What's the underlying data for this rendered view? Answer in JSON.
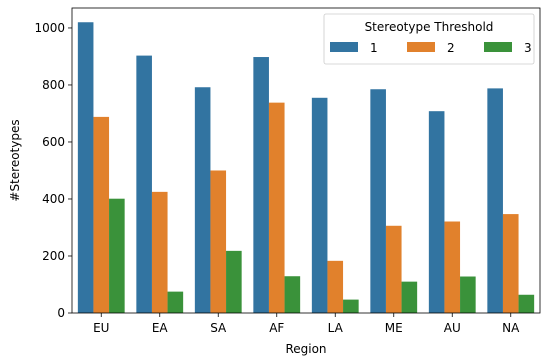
{
  "chart_data": {
    "type": "bar",
    "xlabel": "Region",
    "ylabel": "#Stereotypes",
    "categories": [
      "EU",
      "EA",
      "SA",
      "AF",
      "LA",
      "ME",
      "AU",
      "NA"
    ],
    "ylim": [
      0,
      1070
    ],
    "yticks": [
      0,
      200,
      400,
      600,
      800,
      1000
    ],
    "legend": {
      "title": "Stereotype Threshold",
      "placement": "top-right"
    },
    "grid": false,
    "series": [
      {
        "name": "1",
        "color": "#3274a1",
        "values": [
          1020,
          903,
          792,
          898,
          755,
          785,
          708,
          788
        ]
      },
      {
        "name": "2",
        "color": "#e1812c",
        "values": [
          688,
          425,
          500,
          738,
          183,
          306,
          321,
          347
        ]
      },
      {
        "name": "3",
        "color": "#3a923a",
        "values": [
          401,
          75,
          218,
          129,
          47,
          110,
          128,
          64
        ]
      }
    ]
  }
}
